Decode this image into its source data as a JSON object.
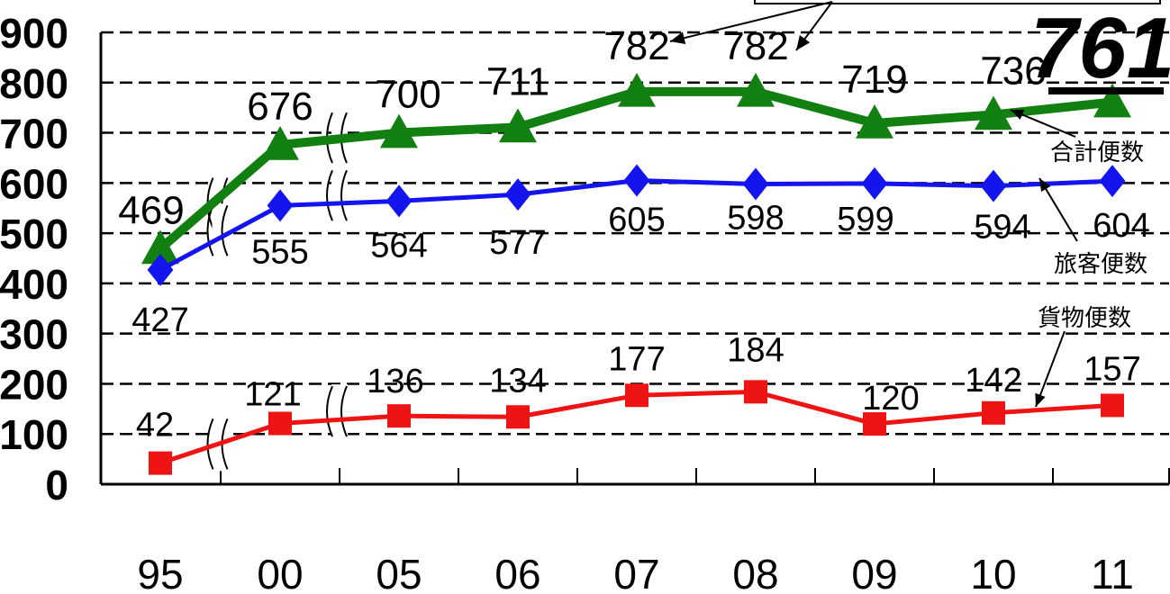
{
  "chart_data": {
    "type": "line",
    "categories": [
      "95",
      "00",
      "05",
      "06",
      "07",
      "08",
      "09",
      "10",
      "11"
    ],
    "ylim": [
      0,
      900
    ],
    "yticks": [
      0,
      100,
      200,
      300,
      400,
      500,
      600,
      700,
      800,
      900
    ],
    "grid": "dashed horizontal",
    "axis_breaks_after_index": [
      0,
      1
    ],
    "series": [
      {
        "name": "合計便数",
        "color": "#118011",
        "marker": "triangle",
        "values": [
          469,
          676,
          700,
          711,
          782,
          782,
          719,
          736,
          761
        ],
        "labels": [
          "469",
          "676",
          "700",
          "711",
          "782",
          "782",
          "719",
          "736",
          ""
        ]
      },
      {
        "name": "旅客便数",
        "color": "#1414ee",
        "marker": "diamond",
        "values": [
          427,
          555,
          564,
          577,
          605,
          598,
          599,
          594,
          604
        ],
        "labels": [
          "427",
          "555",
          "564",
          "577",
          "605",
          "598",
          "599",
          "594",
          "604"
        ]
      },
      {
        "name": "貨物便数",
        "color": "#ee1414",
        "marker": "square",
        "values": [
          42,
          121,
          136,
          134,
          177,
          184,
          120,
          142,
          157
        ],
        "labels": [
          "42",
          "121",
          "136",
          "134",
          "177",
          "184",
          "120",
          "142",
          "157"
        ]
      }
    ],
    "highlight": {
      "text": "761",
      "series": 0,
      "index": 8
    }
  }
}
